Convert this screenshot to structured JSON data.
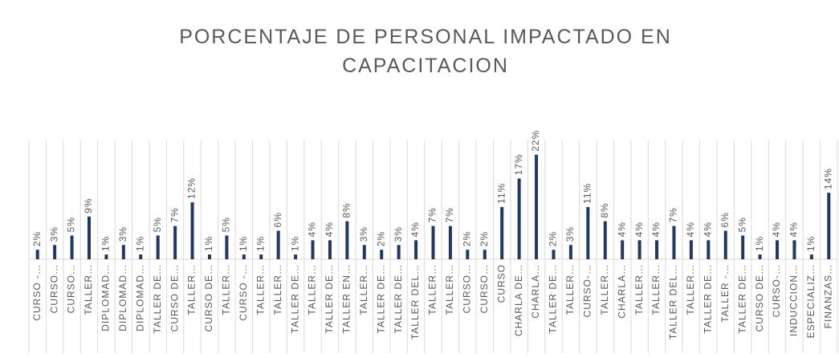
{
  "chart_data": {
    "type": "bar",
    "title": "PORCENTAJE DE PERSONAL IMPACTADO EN CAPACITACION",
    "categories": [
      "CURSO -…",
      "CURSO…",
      "CURSO…",
      "TALLER…",
      "DIPLOMAD…",
      "DIPLOMAD…",
      "DIPLOMAD…",
      "TALLER DE…",
      "CURSO DE…",
      "TALLER…",
      "CURSO DE…",
      "TALLER…",
      "CURSO -…",
      "TALLER…",
      "TALLER…",
      "TALLER DE…",
      "TALLER…",
      "TALLER DE…",
      "TALLER EN…",
      "TALLER…",
      "TALLER DE…",
      "TALLER DE…",
      "TALLER DEL…",
      "TALLER…",
      "TALLER…",
      "CURSO…",
      "CURSO…",
      "CURSO",
      "CHARLA DE…",
      "CHARLA…",
      "TALLER DE…",
      "TALLER…",
      "CURSO-…",
      "TALLER…",
      "CHARLA…",
      "TALLER…",
      "TALLER…",
      "TALLER DEL…",
      "TALLER…",
      "TALLER DE…",
      "TALLER -…",
      "TALLER DE…",
      "CURSO DE…",
      "CURSO-…",
      "INDUCCION…",
      "ESPECIALIZ…",
      "FINANZAS…"
    ],
    "values": [
      2,
      3,
      5,
      9,
      1,
      3,
      1,
      5,
      7,
      12,
      1,
      5,
      1,
      1,
      6,
      1,
      4,
      4,
      8,
      3,
      2,
      3,
      4,
      7,
      7,
      2,
      2,
      11,
      17,
      22,
      2,
      3,
      11,
      8,
      4,
      4,
      4,
      7,
      4,
      4,
      6,
      5,
      1,
      4,
      4,
      1,
      14
    ],
    "value_labels": [
      "2%",
      "3%",
      "5%",
      "9%",
      "1%",
      "3%",
      "1%",
      "5%",
      "7%",
      "12%",
      "1%",
      "5%",
      "1%",
      "1%",
      "6%",
      "1%",
      "4%",
      "4%",
      "8%",
      "3%",
      "2%",
      "3%",
      "4%",
      "7%",
      "7%",
      "2%",
      "2%",
      "11%",
      "17%",
      "22%",
      "2%",
      "3%",
      "11%",
      "8%",
      "4%",
      "4%",
      "4%",
      "7%",
      "4%",
      "4%",
      "6%",
      "5%",
      "1%",
      "4%",
      "4%",
      "1%",
      "14%"
    ],
    "color": "#203864",
    "ylim": [
      0,
      25
    ],
    "grid": true
  }
}
